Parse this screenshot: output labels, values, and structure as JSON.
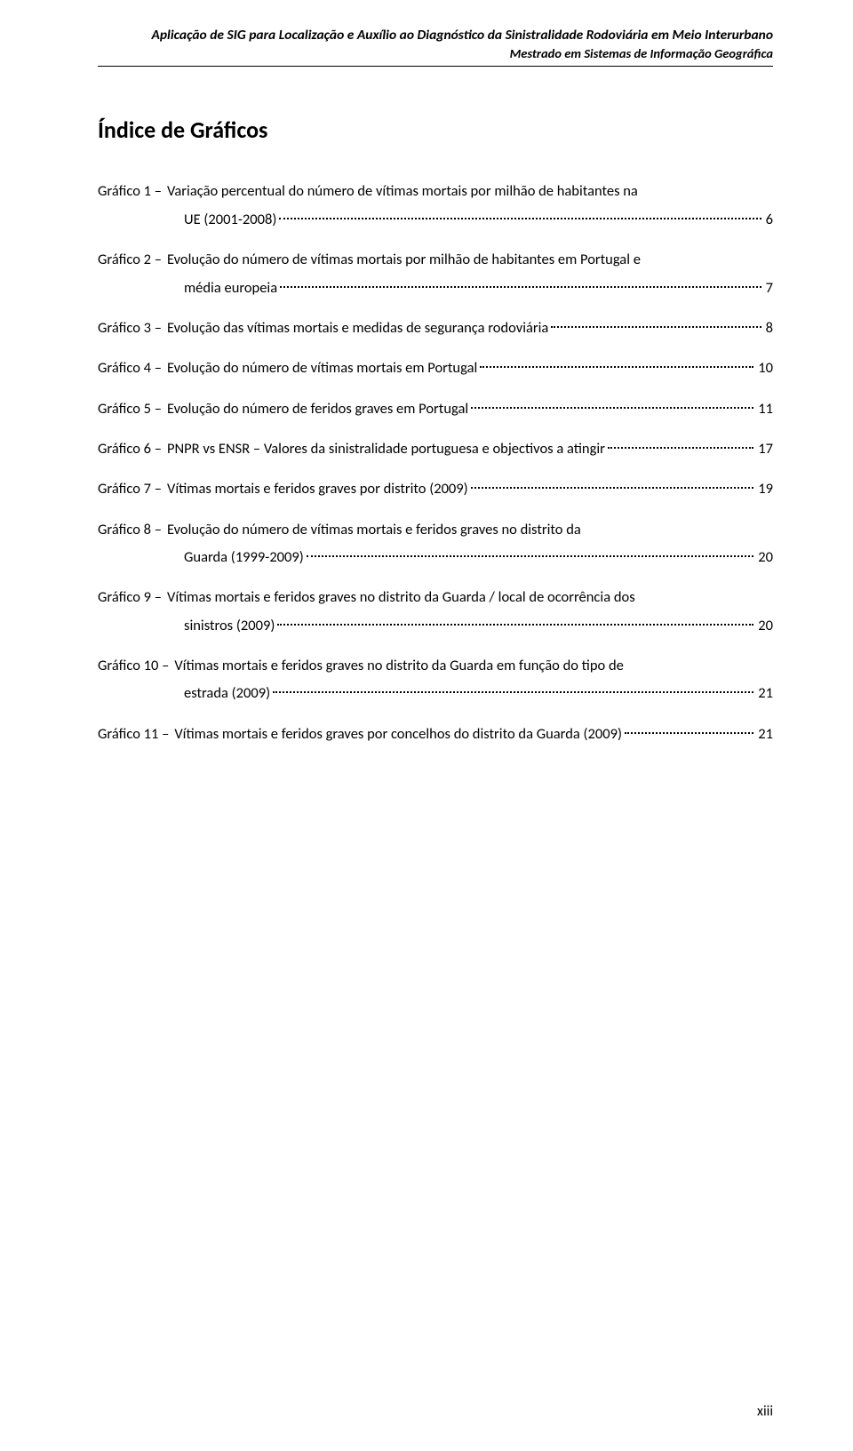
{
  "header": {
    "line1": "Aplicação de SIG para Localização e Auxílio ao Diagnóstico da Sinistralidade Rodoviária em Meio Interurbano",
    "line2": "Mestrado em Sistemas de Informação Geográfica"
  },
  "title": "Índice de Gráficos",
  "entries": [
    {
      "label": "Gráfico 1 –",
      "lines": [
        "Variação percentual do número de vítimas mortais por milhão de habitantes na"
      ],
      "lastLine": "UE (2001-2008)",
      "page": "6",
      "indentContinuation": true
    },
    {
      "label": "Gráfico 2 –",
      "lines": [
        "Evolução do número de vítimas mortais por milhão de habitantes em Portugal e"
      ],
      "lastLine": "média europeia",
      "page": "7",
      "indentContinuation": true
    },
    {
      "label": "Gráfico 3 –",
      "lines": [],
      "lastLine": "Evolução das vítimas mortais e medidas de segurança rodoviária",
      "page": "8",
      "indentContinuation": false
    },
    {
      "label": "Gráfico 4 –",
      "lines": [],
      "lastLine": "Evolução do número de vítimas mortais em Portugal",
      "page": "10",
      "indentContinuation": false
    },
    {
      "label": "Gráfico 5 –",
      "lines": [],
      "lastLine": "Evolução do número de feridos graves em Portugal",
      "page": "11",
      "indentContinuation": false
    },
    {
      "label": "Gráfico 6 –",
      "lines": [],
      "lastLine": "PNPR vs ENSR – Valores da sinistralidade portuguesa e objectivos a atingir",
      "page": "17",
      "indentContinuation": false
    },
    {
      "label": "Gráfico 7 –",
      "lines": [],
      "lastLine": "Vítimas mortais e feridos graves por distrito (2009)",
      "page": "19",
      "indentContinuation": false
    },
    {
      "label": "Gráfico 8 –",
      "lines": [
        "Evolução do número de vítimas mortais e feridos graves no distrito da"
      ],
      "lastLine": "Guarda (1999-2009)",
      "page": "20",
      "indentContinuation": true
    },
    {
      "label": "Gráfico 9 –",
      "lines": [
        "Vítimas mortais e feridos graves no distrito da Guarda / local de ocorrência dos"
      ],
      "lastLine": "sinistros (2009)",
      "page": "20",
      "indentContinuation": true
    },
    {
      "label": "Gráfico 10 –",
      "lines": [
        "Vítimas mortais e feridos graves no distrito da Guarda em função do tipo de"
      ],
      "lastLine": "estrada (2009)",
      "page": "21",
      "indentContinuation": true
    },
    {
      "label": "Gráfico 11 –",
      "lines": [],
      "lastLine": "Vítimas mortais e feridos graves por concelhos do distrito da Guarda (2009)",
      "page": "21",
      "indentContinuation": false
    }
  ],
  "footerPage": "xiii"
}
